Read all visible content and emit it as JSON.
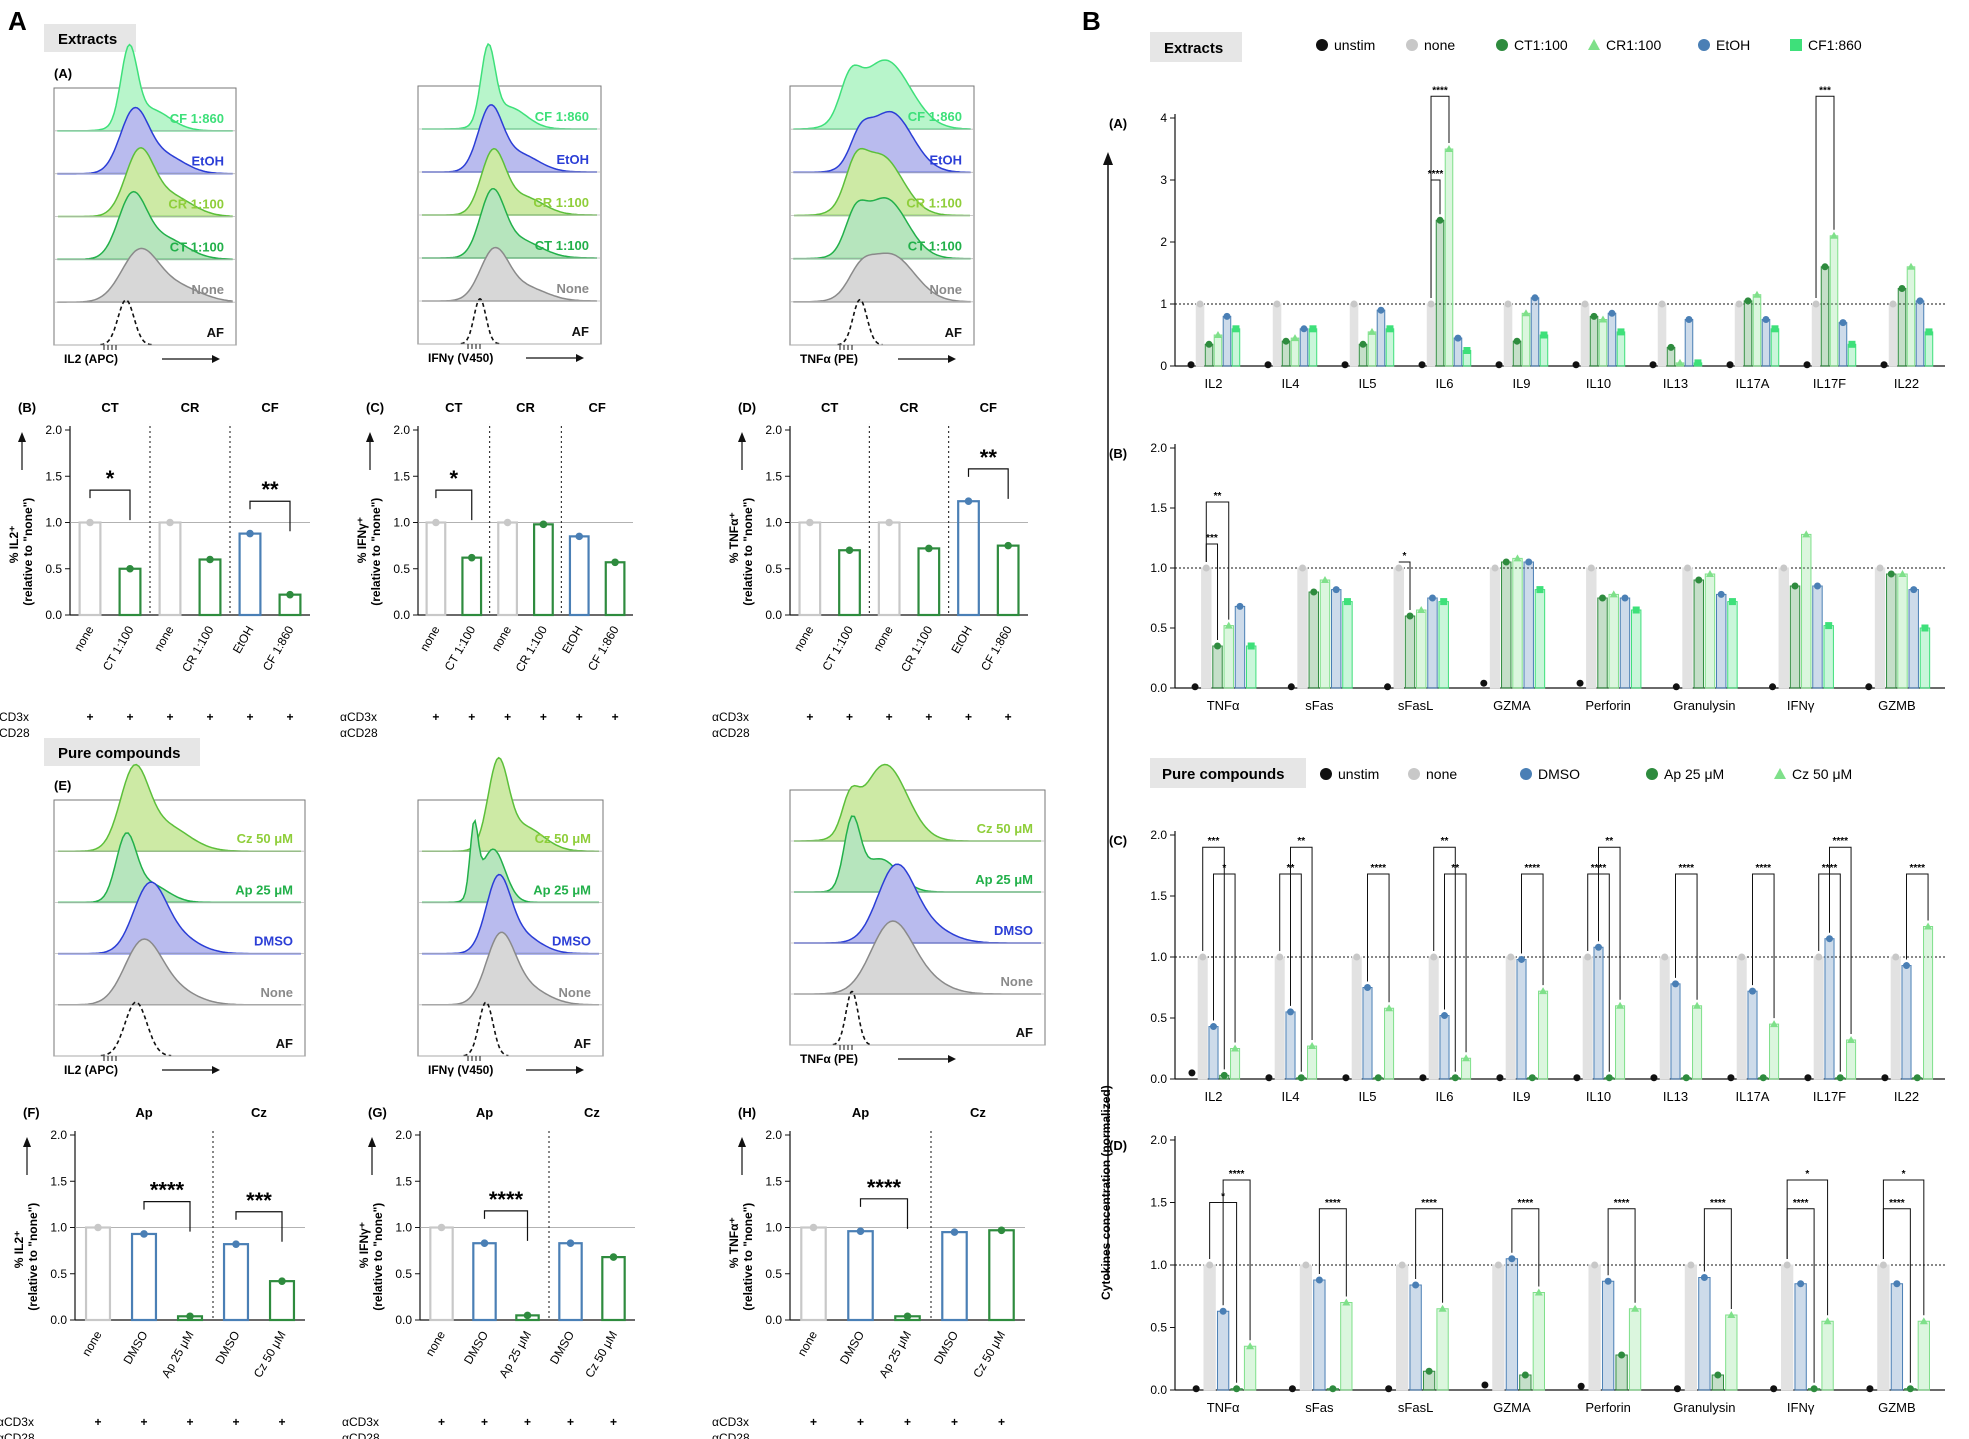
{
  "figure": {
    "panel_A": "A",
    "panel_B": "B",
    "extracts_header": "Extracts",
    "pure_header": "Pure compounds",
    "stim_row1": "αCD3x",
    "stim_row2": "αCD28",
    "plus": "+"
  },
  "colors": {
    "unstim": "#111111",
    "none": "#c8c8c8",
    "CT": "#2e8b3e",
    "CR": "#7fe08a",
    "EtOH": "#4a7fb5",
    "CF": "#3ee07a",
    "DMSO": "#4a7fb5",
    "Ap": "#2e8b3e",
    "Cz": "#7fe08a"
  },
  "histograms": {
    "extracts": [
      {
        "sub": "(A)",
        "xlabel": "IL2 (APC)",
        "labels": [
          "CF 1:860",
          "EtOH",
          "CR 1:100",
          "CT 1:100",
          "None",
          "AF"
        ]
      },
      {
        "sub": "",
        "xlabel": "IFNγ (V450)",
        "labels": [
          "CF 1:860",
          "EtOH",
          "CR 1:100",
          "CT 1:100",
          "None",
          "AF"
        ]
      },
      {
        "sub": "",
        "xlabel": "TNFα (PE)",
        "labels": [
          "CF 1:860",
          "EtOH",
          "CR 1:100",
          "CT 1:100",
          "None",
          "AF"
        ]
      }
    ],
    "pure": [
      {
        "sub": "(E)",
        "xlabel": "IL2 (APC)",
        "labels": [
          "Cz 50 μM",
          "Ap 25 μM",
          "DMSO",
          "None",
          "AF"
        ]
      },
      {
        "sub": "",
        "xlabel": "IFNγ (V450)",
        "labels": [
          "Cz 50 μM",
          "Ap 25 μM",
          "DMSO",
          "None",
          "AF"
        ]
      },
      {
        "sub": "",
        "xlabel": "TNFα (PE)",
        "labels": [
          "Cz 50 μM",
          "Ap 25 μM",
          "DMSO",
          "None",
          "AF"
        ]
      }
    ]
  },
  "chart_data": [
    {
      "id": "B",
      "type": "bar",
      "sub": "(B)",
      "ylabel": "% IL2⁺",
      "ylabel2": "(relative to \"none\")",
      "ylim": [
        0,
        2.0
      ],
      "yticks": [
        "0.0",
        "0.5",
        "1.0",
        "1.5",
        "2.0"
      ],
      "groups": [
        "CT",
        "CR",
        "CF"
      ],
      "categories": [
        "none",
        "CT 1:100",
        "none",
        "CR 1:100",
        "EtOH",
        "CF 1:860"
      ],
      "values": [
        1.0,
        0.5,
        1.0,
        0.6,
        0.88,
        0.22
      ],
      "sig": [
        {
          "text": "*",
          "from": 0,
          "to": 1
        },
        {
          "text": "**",
          "from": 4,
          "to": 5
        }
      ]
    },
    {
      "id": "C",
      "type": "bar",
      "sub": "(C)",
      "ylabel": "% IFNγ⁺",
      "ylabel2": "(relative to \"none\")",
      "ylim": [
        0,
        2.0
      ],
      "yticks": [
        "0.0",
        "0.5",
        "1.0",
        "1.5",
        "2.0"
      ],
      "groups": [
        "CT",
        "CR",
        "CF"
      ],
      "categories": [
        "none",
        "CT 1:100",
        "none",
        "CR 1:100",
        "EtOH",
        "CF 1:860"
      ],
      "values": [
        1.0,
        0.62,
        1.0,
        0.98,
        0.85,
        0.57
      ],
      "sig": [
        {
          "text": "*",
          "from": 0,
          "to": 1
        }
      ]
    },
    {
      "id": "D",
      "type": "bar",
      "sub": "(D)",
      "ylabel": "% TNFα⁺",
      "ylabel2": "(relative to \"none\")",
      "ylim": [
        0,
        2.0
      ],
      "yticks": [
        "0.0",
        "0.5",
        "1.0",
        "1.5",
        "2.0"
      ],
      "groups": [
        "CT",
        "CR",
        "CF"
      ],
      "categories": [
        "none",
        "CT 1:100",
        "none",
        "CR 1:100",
        "EtOH",
        "CF 1:860"
      ],
      "values": [
        1.0,
        0.7,
        1.0,
        0.72,
        1.23,
        0.75
      ],
      "sig": [
        {
          "text": "**",
          "from": 4,
          "to": 5
        }
      ]
    },
    {
      "id": "F",
      "type": "bar",
      "sub": "(F)",
      "ylabel": "% IL2⁺",
      "ylabel2": "(relative to \"none\")",
      "ylim": [
        0,
        2.0
      ],
      "yticks": [
        "0.0",
        "0.5",
        "1.0",
        "1.5",
        "2.0"
      ],
      "groups": [
        "Ap",
        "Cz"
      ],
      "categories": [
        "none",
        "DMSO",
        "Ap 25 μM",
        "DMSO",
        "Cz 50 μM"
      ],
      "values": [
        1.0,
        0.93,
        0.04,
        0.82,
        0.42
      ],
      "sig": [
        {
          "text": "****",
          "from": 1,
          "to": 2
        },
        {
          "text": "***",
          "from": 3,
          "to": 4
        }
      ]
    },
    {
      "id": "G",
      "type": "bar",
      "sub": "(G)",
      "ylabel": "% IFNγ⁺",
      "ylabel2": "(relative to \"none\")",
      "ylim": [
        0,
        2.0
      ],
      "yticks": [
        "0.0",
        "0.5",
        "1.0",
        "1.5",
        "2.0"
      ],
      "groups": [
        "Ap",
        "Cz"
      ],
      "categories": [
        "none",
        "DMSO",
        "Ap 25 μM",
        "DMSO",
        "Cz 50 μM"
      ],
      "values": [
        1.0,
        0.83,
        0.05,
        0.83,
        0.68
      ],
      "sig": [
        {
          "text": "****",
          "from": 1,
          "to": 2
        }
      ]
    },
    {
      "id": "H",
      "type": "bar",
      "sub": "(H)",
      "ylabel": "% TNFα⁺",
      "ylabel2": "(relative to \"none\")",
      "ylim": [
        0,
        2.0
      ],
      "yticks": [
        "0.0",
        "0.5",
        "1.0",
        "1.5",
        "2.0"
      ],
      "groups": [
        "Ap",
        "Cz"
      ],
      "categories": [
        "none",
        "DMSO",
        "Ap 25 μM",
        "DMSO",
        "Cz 50 μM"
      ],
      "values": [
        1.0,
        0.96,
        0.04,
        0.95,
        0.97
      ],
      "sig": [
        {
          "text": "****",
          "from": 1,
          "to": 2
        }
      ]
    },
    {
      "id": "BA",
      "type": "bar",
      "sub": "(A)",
      "ylim": [
        0,
        4
      ],
      "yticks": [
        "0",
        "1",
        "2",
        "3",
        "4"
      ],
      "series": [
        "unstim",
        "none",
        "CT1:100",
        "CR1:100",
        "EtOH",
        "CF1:860"
      ],
      "categories": [
        "IL2",
        "IL4",
        "IL5",
        "IL6",
        "IL9",
        "IL10",
        "IL13",
        "IL17A",
        "IL17F",
        "IL22"
      ],
      "values": [
        [
          0.02,
          1.0,
          0.35,
          0.5,
          0.8,
          0.6
        ],
        [
          0.02,
          1.0,
          0.4,
          0.45,
          0.6,
          0.6
        ],
        [
          0.02,
          1.0,
          0.35,
          0.55,
          0.9,
          0.6
        ],
        [
          0.02,
          1.0,
          2.35,
          3.5,
          0.45,
          0.25
        ],
        [
          0.02,
          1.0,
          0.4,
          0.85,
          1.1,
          0.5
        ],
        [
          0.02,
          1.0,
          0.8,
          0.75,
          0.85,
          0.55
        ],
        [
          0.02,
          1.0,
          0.3,
          0.05,
          0.75,
          0.05
        ],
        [
          0.02,
          1.0,
          1.05,
          1.15,
          0.75,
          0.6
        ],
        [
          0.02,
          1.0,
          1.6,
          2.1,
          0.7,
          0.35
        ],
        [
          0.02,
          1.0,
          1.25,
          1.6,
          1.05,
          0.55
        ]
      ],
      "sig": [
        {
          "text": "****",
          "cat": 3,
          "from": 1,
          "to": 2,
          "level": 3.0
        },
        {
          "text": "****",
          "cat": 3,
          "from": 1,
          "to": 3,
          "level": 4.35
        },
        {
          "text": "***",
          "cat": 8,
          "from": 1,
          "to": 3,
          "level": 4.35
        }
      ]
    },
    {
      "id": "BB",
      "type": "bar",
      "sub": "(B)",
      "ylim": [
        0,
        2.0
      ],
      "yticks": [
        "0.0",
        "0.5",
        "1.0",
        "1.5",
        "2.0"
      ],
      "series": [
        "unstim",
        "none",
        "CT1:100",
        "CR1:100",
        "EtOH",
        "CF1:860"
      ],
      "categories": [
        "TNFα",
        "sFas",
        "sFasL",
        "GZMA",
        "Perforin",
        "Granulysin",
        "IFNγ",
        "GZMB"
      ],
      "values": [
        [
          0.01,
          1.0,
          0.35,
          0.52,
          0.68,
          0.35
        ],
        [
          0.01,
          1.0,
          0.8,
          0.9,
          0.82,
          0.72
        ],
        [
          0.01,
          1.0,
          0.6,
          0.65,
          0.75,
          0.72
        ],
        [
          0.04,
          1.0,
          1.05,
          1.08,
          1.05,
          0.82
        ],
        [
          0.04,
          1.0,
          0.75,
          0.78,
          0.75,
          0.65
        ],
        [
          0.01,
          1.0,
          0.9,
          0.95,
          0.78,
          0.72
        ],
        [
          0.01,
          1.0,
          0.85,
          1.28,
          0.85,
          0.52
        ],
        [
          0.01,
          1.0,
          0.95,
          0.95,
          0.82,
          0.5
        ]
      ],
      "sig": [
        {
          "text": "***",
          "cat": 0,
          "from": 1,
          "to": 2,
          "level": 1.2
        },
        {
          "text": "**",
          "cat": 0,
          "from": 1,
          "to": 3,
          "level": 1.55
        },
        {
          "text": "*",
          "cat": 2,
          "from": 1,
          "to": 2,
          "level": 1.05
        }
      ]
    },
    {
      "id": "BC",
      "type": "bar",
      "sub": "(C)",
      "ylim": [
        0,
        2.0
      ],
      "yticks": [
        "0.0",
        "0.5",
        "1.0",
        "1.5",
        "2.0"
      ],
      "series": [
        "unstim",
        "none",
        "DMSO",
        "Ap 25 μM",
        "Cz 50 μM"
      ],
      "categories": [
        "IL2",
        "IL4",
        "IL5",
        "IL6",
        "IL9",
        "IL10",
        "IL13",
        "IL17A",
        "IL17F",
        "IL22"
      ],
      "values": [
        [
          0.05,
          1.0,
          0.43,
          0.03,
          0.25
        ],
        [
          0.01,
          1.0,
          0.55,
          0.01,
          0.27
        ],
        [
          0.01,
          1.0,
          0.75,
          0.01,
          0.58
        ],
        [
          0.01,
          1.0,
          0.52,
          0.01,
          0.17
        ],
        [
          0.01,
          1.0,
          0.98,
          0.01,
          0.72
        ],
        [
          0.01,
          1.0,
          1.08,
          0.01,
          0.6
        ],
        [
          0.01,
          1.0,
          0.78,
          0.01,
          0.6
        ],
        [
          0.01,
          1.0,
          0.72,
          0.01,
          0.45
        ],
        [
          0.01,
          1.0,
          1.15,
          0.01,
          0.32
        ],
        [
          0.01,
          1.0,
          0.93,
          0.01,
          1.25
        ]
      ],
      "sig": [
        {
          "text": "***",
          "cat": 0,
          "from": 1,
          "to": 3,
          "level": 1.9
        },
        {
          "text": "*",
          "cat": 0,
          "from": 2,
          "to": 4,
          "level": 1.68
        },
        {
          "text": "**",
          "cat": 1,
          "from": 1,
          "to": 3,
          "level": 1.68
        },
        {
          "text": "**",
          "cat": 1,
          "from": 2,
          "to": 4,
          "level": 1.9
        },
        {
          "text": "****",
          "cat": 2,
          "from": 2,
          "to": 4,
          "level": 1.68
        },
        {
          "text": "**",
          "cat": 3,
          "from": 1,
          "to": 3,
          "level": 1.9
        },
        {
          "text": "**",
          "cat": 3,
          "from": 2,
          "to": 4,
          "level": 1.68
        },
        {
          "text": "****",
          "cat": 4,
          "from": 2,
          "to": 4,
          "level": 1.68
        },
        {
          "text": "****",
          "cat": 5,
          "from": 1,
          "to": 3,
          "level": 1.68
        },
        {
          "text": "**",
          "cat": 5,
          "from": 2,
          "to": 4,
          "level": 1.9
        },
        {
          "text": "****",
          "cat": 6,
          "from": 2,
          "to": 4,
          "level": 1.68
        },
        {
          "text": "****",
          "cat": 7,
          "from": 2,
          "to": 4,
          "level": 1.68
        },
        {
          "text": "****",
          "cat": 8,
          "from": 1,
          "to": 3,
          "level": 1.68
        },
        {
          "text": "****",
          "cat": 8,
          "from": 2,
          "to": 4,
          "level": 1.9
        },
        {
          "text": "****",
          "cat": 9,
          "from": 2,
          "to": 4,
          "level": 1.68
        }
      ]
    },
    {
      "id": "BD",
      "type": "bar",
      "sub": "(D)",
      "ylim": [
        0,
        2.0
      ],
      "yticks": [
        "0.0",
        "0.5",
        "1.0",
        "1.5",
        "2.0"
      ],
      "series": [
        "unstim",
        "none",
        "DMSO",
        "Ap 25 μM",
        "Cz 50 μM"
      ],
      "categories": [
        "TNFα",
        "sFas",
        "sFasL",
        "GZMA",
        "Perforin",
        "Granulysin",
        "IFNγ",
        "GZMB"
      ],
      "values": [
        [
          0.01,
          1.0,
          0.63,
          0.01,
          0.35
        ],
        [
          0.01,
          1.0,
          0.88,
          0.01,
          0.7
        ],
        [
          0.01,
          1.0,
          0.84,
          0.15,
          0.65
        ],
        [
          0.04,
          1.0,
          1.05,
          0.12,
          0.78
        ],
        [
          0.03,
          1.0,
          0.87,
          0.28,
          0.65
        ],
        [
          0.01,
          1.0,
          0.9,
          0.12,
          0.6
        ],
        [
          0.01,
          1.0,
          0.85,
          0.01,
          0.55
        ],
        [
          0.01,
          1.0,
          0.85,
          0.01,
          0.55
        ]
      ],
      "sig": [
        {
          "text": "*",
          "cat": 0,
          "from": 1,
          "to": 3,
          "level": 1.5
        },
        {
          "text": "****",
          "cat": 0,
          "from": 2,
          "to": 4,
          "level": 1.68
        },
        {
          "text": "****",
          "cat": 1,
          "from": 2,
          "to": 4,
          "level": 1.45
        },
        {
          "text": "****",
          "cat": 2,
          "from": 2,
          "to": 4,
          "level": 1.45
        },
        {
          "text": "****",
          "cat": 3,
          "from": 2,
          "to": 4,
          "level": 1.45
        },
        {
          "text": "****",
          "cat": 4,
          "from": 2,
          "to": 4,
          "level": 1.45
        },
        {
          "text": "****",
          "cat": 5,
          "from": 2,
          "to": 4,
          "level": 1.45
        },
        {
          "text": "****",
          "cat": 6,
          "from": 1,
          "to": 3,
          "level": 1.45
        },
        {
          "text": "*",
          "cat": 6,
          "from": 1,
          "to": 4,
          "level": 1.68
        },
        {
          "text": "****",
          "cat": 7,
          "from": 1,
          "to": 3,
          "level": 1.45
        },
        {
          "text": "*",
          "cat": 7,
          "from": 1,
          "to": 4,
          "level": 1.68
        }
      ]
    }
  ],
  "legend_extracts": [
    "unstim",
    "none",
    "CT1:100",
    "CR1:100",
    "EtOH",
    "CF1:860"
  ],
  "legend_pure": [
    "unstim",
    "none",
    "DMSO",
    "Ap 25 μM",
    "Cz 50 μM"
  ],
  "y_axis_title": "Cytokines concentration (normalized)"
}
